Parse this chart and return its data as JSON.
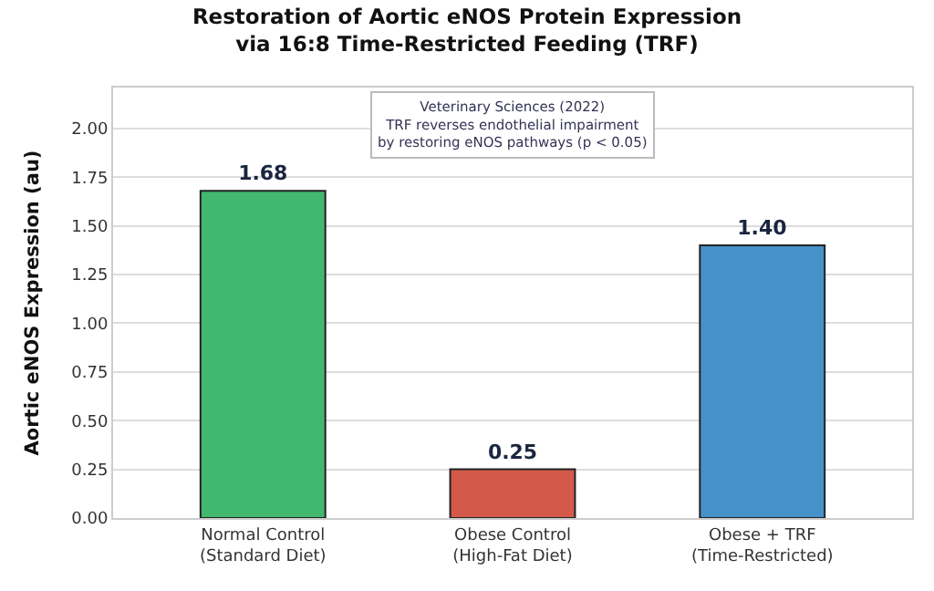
{
  "chart_data": {
    "type": "bar",
    "title": "Restoration of Aortic eNOS Protein Expression\nvia 16:8 Time-Restricted Feeding (TRF)",
    "ylabel": "Aortic eNOS Expression (au)",
    "categories": [
      "Normal Control\n(Standard Diet)",
      "Obese Control\n(High-Fat Diet)",
      "Obese + TRF\n(Time-Restricted)"
    ],
    "values": [
      1.68,
      0.25,
      1.4
    ],
    "colors": [
      "#41b86e",
      "#d35a4b",
      "#4592c8"
    ],
    "value_labels": [
      "1.68",
      "0.25",
      "1.40"
    ],
    "ylim": [
      0,
      2.21
    ],
    "yticks": [
      {
        "value": 0,
        "label": "0.00"
      },
      {
        "value": 0.25,
        "label": "0.25"
      },
      {
        "value": 0.5,
        "label": "0.50"
      },
      {
        "value": 0.75,
        "label": "0.75"
      },
      {
        "value": 1,
        "label": "1.00"
      },
      {
        "value": 1.25,
        "label": "1.25"
      },
      {
        "value": 1.5,
        "label": "1.50"
      },
      {
        "value": 1.75,
        "label": "1.75"
      },
      {
        "value": 2,
        "label": "2.00"
      }
    ],
    "grid": "y",
    "annotations": [
      "Veterinary Sciences (2022)\nTRF reverses endothelial impairment\nby restoring eNOS pathways (p < 0.05)"
    ]
  }
}
